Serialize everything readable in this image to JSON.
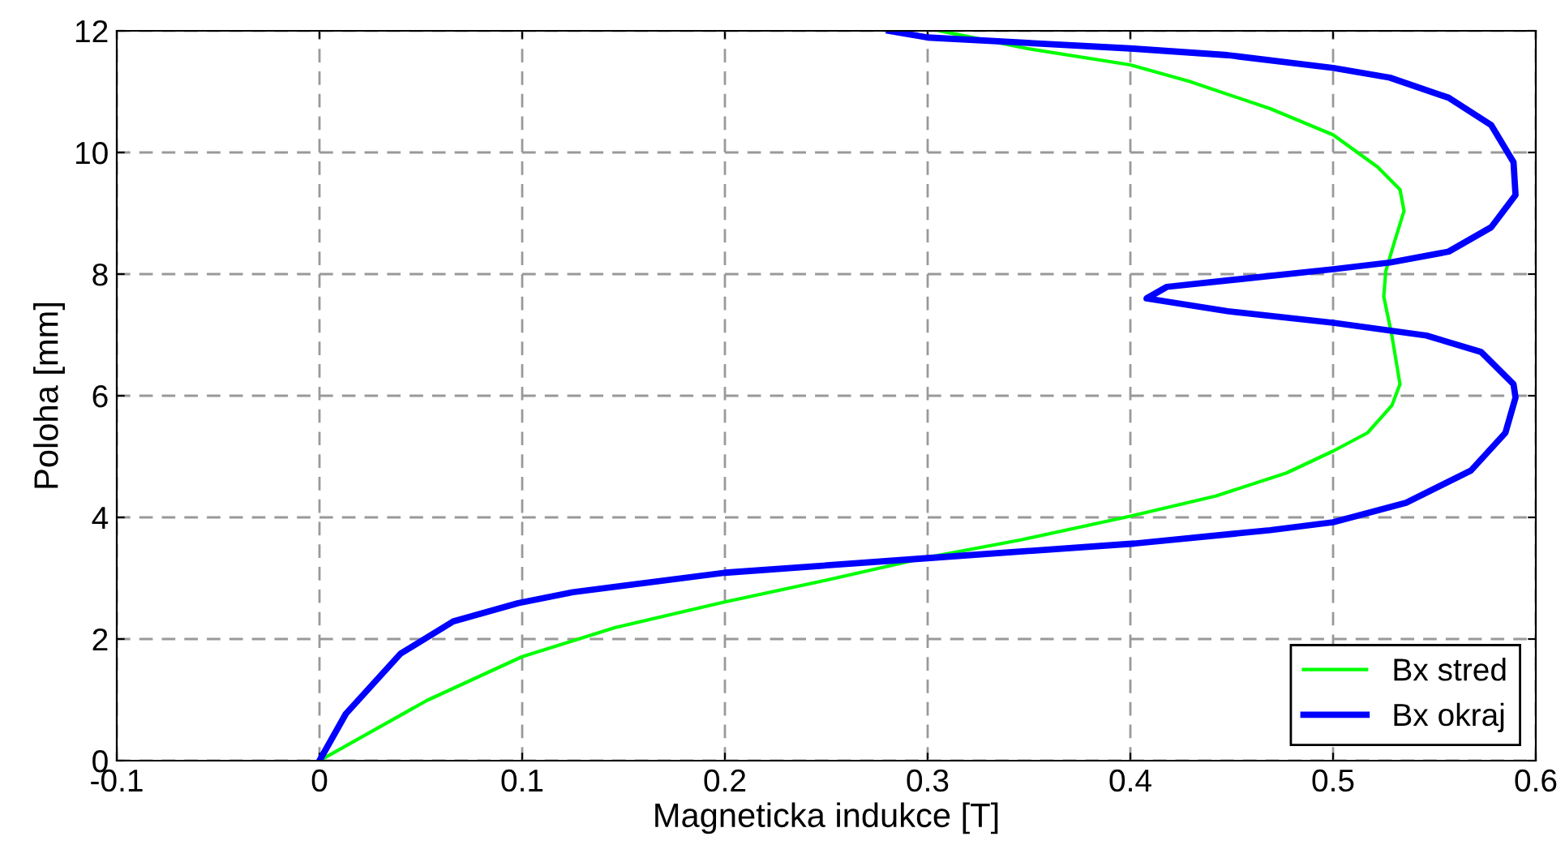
{
  "chart_data": {
    "type": "line",
    "xlabel": "Magneticka indukce [T]",
    "ylabel": "Poloha [mm]",
    "xlim": [
      -0.1,
      0.6
    ],
    "xticks": [
      -0.1,
      0,
      0.1,
      0.2,
      0.3,
      0.4,
      0.5,
      0.6
    ],
    "ylim": [
      0,
      12
    ],
    "yticks": [
      0,
      2,
      4,
      6,
      8,
      10,
      12
    ],
    "grid": true,
    "legend": "bottom right",
    "series": [
      {
        "name": "Bx stred",
        "color": "#00ff00",
        "x": [
          0,
          0.053,
          0.1,
          0.146,
          0.2,
          0.253,
          0.298,
          0.346,
          0.4,
          0.442,
          0.477,
          0.5,
          0.517,
          0.529,
          0.533,
          0.529,
          0.525,
          0.526,
          0.53,
          0.535,
          0.533,
          0.522,
          0.5,
          0.469,
          0.429,
          0.4,
          0.349,
          0.306
        ],
        "values": [
          0,
          0.99,
          1.71,
          2.19,
          2.61,
          2.99,
          3.33,
          3.63,
          4.02,
          4.35,
          4.73,
          5.09,
          5.39,
          5.84,
          6.19,
          6.99,
          7.63,
          8.05,
          8.5,
          9.04,
          9.39,
          9.76,
          10.29,
          10.72,
          11.17,
          11.44,
          11.71,
          12
        ]
      },
      {
        "name": "Bx okraj",
        "color": "#0000ff",
        "x": [
          0,
          0.013,
          0.04,
          0.066,
          0.098,
          0.125,
          0.2,
          0.3,
          0.402,
          0.469,
          0.5,
          0.536,
          0.568,
          0.585,
          0.59,
          0.589,
          0.573,
          0.546,
          0.5,
          0.448,
          0.408,
          0.418,
          0.5,
          0.528,
          0.557,
          0.578,
          0.59,
          0.589,
          0.578,
          0.557,
          0.528,
          0.5,
          0.448,
          0.4,
          0.3,
          0.281
        ],
        "values": [
          0,
          0.77,
          1.76,
          2.29,
          2.59,
          2.77,
          3.09,
          3.33,
          3.57,
          3.79,
          3.92,
          4.24,
          4.77,
          5.39,
          5.97,
          6.19,
          6.72,
          6.99,
          7.2,
          7.39,
          7.6,
          7.79,
          8.08,
          8.19,
          8.37,
          8.77,
          9.3,
          9.84,
          10.45,
          10.9,
          11.23,
          11.39,
          11.6,
          11.71,
          11.89,
          12
        ]
      }
    ]
  }
}
